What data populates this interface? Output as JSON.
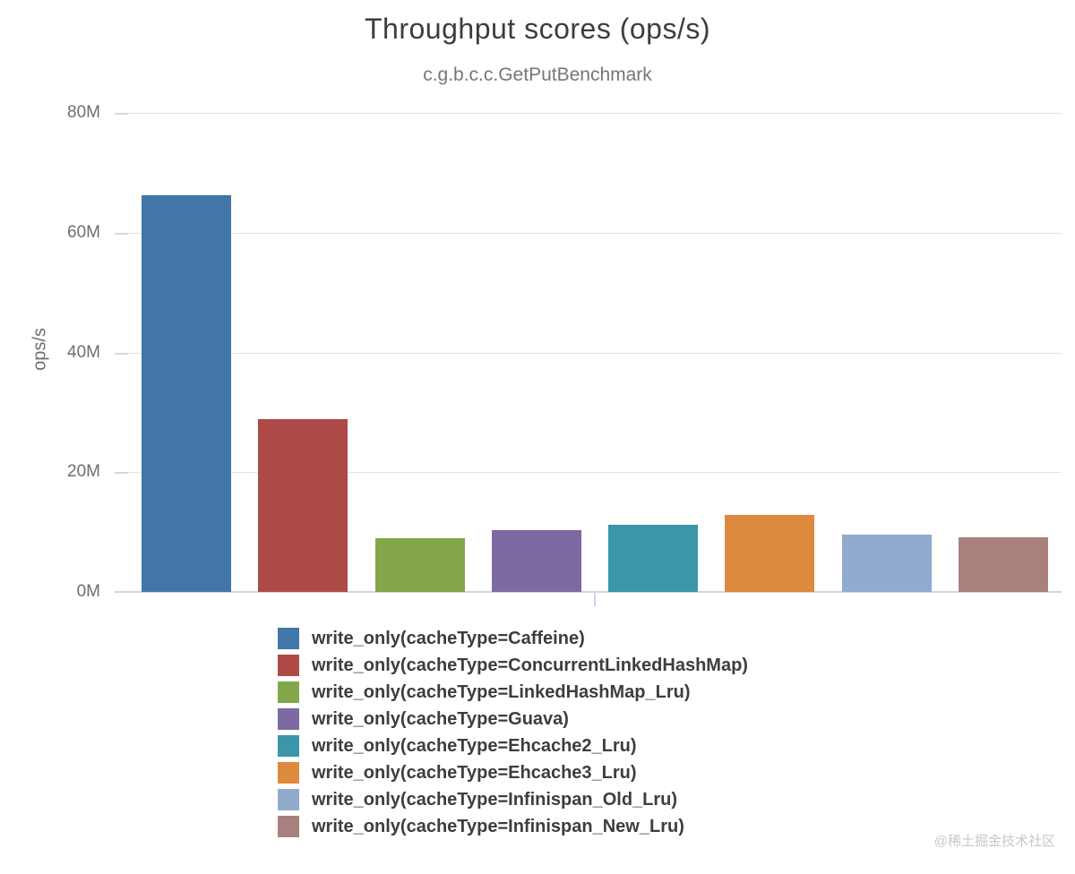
{
  "page": {
    "watermark": "@稀土掘金技术社区"
  },
  "chart_data": {
    "type": "bar",
    "title": "Throughput scores (ops/s)",
    "subtitle": "c.g.b.c.c.GetPutBenchmark",
    "xlabel": "",
    "ylabel": "ops/s",
    "ylim": [
      0,
      80000000
    ],
    "grid": true,
    "legend_position": "bottom",
    "yticks": [
      {
        "label": "80M",
        "value": 80000000
      },
      {
        "label": "60M",
        "value": 60000000
      },
      {
        "label": "40M",
        "value": 40000000
      },
      {
        "label": "20M",
        "value": 20000000
      },
      {
        "label": "0M",
        "value": 0
      }
    ],
    "series": [
      {
        "name": "write_only(cacheType=Caffeine)",
        "value": 66300000,
        "color": "#4276a8"
      },
      {
        "name": "write_only(cacheType=ConcurrentLinkedHashMap)",
        "value": 28800000,
        "color": "#ad4a47"
      },
      {
        "name": "write_only(cacheType=LinkedHashMap_Lru)",
        "value": 9000000,
        "color": "#83a64b"
      },
      {
        "name": "write_only(cacheType=Guava)",
        "value": 10300000,
        "color": "#7d6aa2"
      },
      {
        "name": "write_only(cacheType=Ehcache2_Lru)",
        "value": 11200000,
        "color": "#3b96a8"
      },
      {
        "name": "write_only(cacheType=Ehcache3_Lru)",
        "value": 12800000,
        "color": "#dd8a3e"
      },
      {
        "name": "write_only(cacheType=Infinispan_Old_Lru)",
        "value": 9600000,
        "color": "#93aacf"
      },
      {
        "name": "write_only(cacheType=Infinispan_New_Lru)",
        "value": 9100000,
        "color": "#a8807e"
      }
    ]
  }
}
